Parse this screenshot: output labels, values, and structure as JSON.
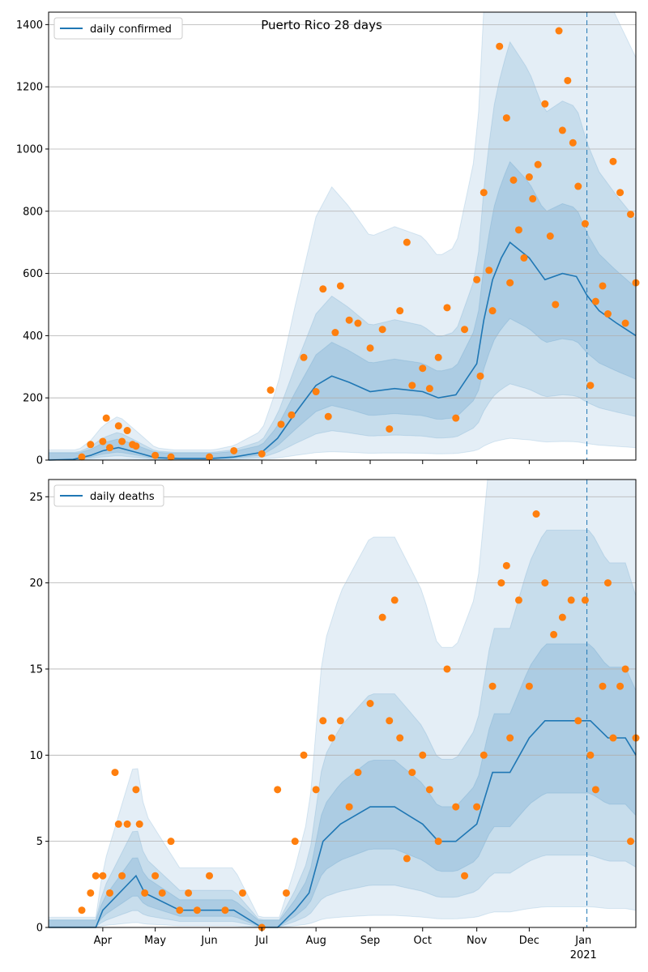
{
  "title": "Puerto Rico 28 days",
  "colors": {
    "line": "#1f77b4",
    "points": "#ff7f0e",
    "band": "#1f77b4",
    "grid": "#b0b0b0",
    "vline": "#1f77b4"
  },
  "x_axis": {
    "start_date": "2020-03-01",
    "end_date": "2021-01-31",
    "ticks": [
      {
        "date": "2020-04-01",
        "label": "Apr"
      },
      {
        "date": "2020-05-01",
        "label": "May"
      },
      {
        "date": "2020-06-01",
        "label": "Jun"
      },
      {
        "date": "2020-07-01",
        "label": "Jul"
      },
      {
        "date": "2020-08-01",
        "label": "Aug"
      },
      {
        "date": "2020-09-01",
        "label": "Sep"
      },
      {
        "date": "2020-10-01",
        "label": "Oct"
      },
      {
        "date": "2020-11-01",
        "label": "Nov"
      },
      {
        "date": "2020-12-01",
        "label": "Dec"
      },
      {
        "date": "2021-01-01",
        "label": "Jan"
      }
    ],
    "year_label": "2021",
    "forecast_start": "2021-01-03"
  },
  "chart_data": [
    {
      "type": "line",
      "series": [
        {
          "name": "daily confirmed",
          "x": [
            "2020-03-01",
            "2020-03-15",
            "2020-03-25",
            "2020-04-01",
            "2020-04-10",
            "2020-04-20",
            "2020-05-01",
            "2020-05-15",
            "2020-06-01",
            "2020-06-15",
            "2020-07-01",
            "2020-07-10",
            "2020-07-20",
            "2020-08-01",
            "2020-08-10",
            "2020-08-20",
            "2020-09-01",
            "2020-09-15",
            "2020-10-01",
            "2020-10-10",
            "2020-10-20",
            "2020-11-01",
            "2020-11-05",
            "2020-11-10",
            "2020-11-15",
            "2020-11-20",
            "2020-12-01",
            "2020-12-10",
            "2020-12-20",
            "2020-12-28",
            "2021-01-03",
            "2021-01-10",
            "2021-01-20",
            "2021-01-31"
          ],
          "y": [
            0,
            2,
            15,
            30,
            40,
            25,
            8,
            5,
            5,
            10,
            25,
            70,
            150,
            240,
            270,
            250,
            220,
            230,
            220,
            200,
            210,
            310,
            450,
            580,
            650,
            700,
            650,
            580,
            600,
            590,
            530,
            480,
            440,
            400
          ]
        },
        {
          "name": "daily confirmed observed",
          "x": [
            "2020-03-20",
            "2020-03-25",
            "2020-04-01",
            "2020-04-03",
            "2020-04-05",
            "2020-04-10",
            "2020-04-12",
            "2020-04-15",
            "2020-04-18",
            "2020-04-20",
            "2020-05-01",
            "2020-05-10",
            "2020-06-01",
            "2020-06-15",
            "2020-07-01",
            "2020-07-06",
            "2020-07-12",
            "2020-07-18",
            "2020-07-25",
            "2020-08-01",
            "2020-08-05",
            "2020-08-08",
            "2020-08-12",
            "2020-08-15",
            "2020-08-20",
            "2020-08-25",
            "2020-09-01",
            "2020-09-08",
            "2020-09-12",
            "2020-09-18",
            "2020-09-22",
            "2020-09-25",
            "2020-10-01",
            "2020-10-05",
            "2020-10-10",
            "2020-10-15",
            "2020-10-20",
            "2020-10-25",
            "2020-11-01",
            "2020-11-03",
            "2020-11-05",
            "2020-11-08",
            "2020-11-10",
            "2020-11-14",
            "2020-11-18",
            "2020-11-20",
            "2020-11-22",
            "2020-11-25",
            "2020-11-28",
            "2020-12-01",
            "2020-12-03",
            "2020-12-06",
            "2020-12-10",
            "2020-12-13",
            "2020-12-16",
            "2020-12-18",
            "2020-12-20",
            "2020-12-23",
            "2020-12-26",
            "2020-12-29",
            "2021-01-02",
            "2021-01-05",
            "2021-01-08",
            "2021-01-12",
            "2021-01-15",
            "2021-01-18",
            "2021-01-22",
            "2021-01-25",
            "2021-01-28",
            "2021-01-31"
          ],
          "y": [
            10,
            50,
            60,
            135,
            40,
            110,
            60,
            95,
            50,
            45,
            15,
            10,
            10,
            30,
            20,
            225,
            115,
            145,
            330,
            220,
            550,
            140,
            410,
            560,
            450,
            440,
            360,
            420,
            100,
            480,
            700,
            240,
            295,
            230,
            330,
            490,
            135,
            420,
            580,
            270,
            860,
            610,
            480,
            1330,
            1100,
            570,
            900,
            740,
            650,
            910,
            840,
            950,
            1145,
            720,
            500,
            1380,
            1060,
            1220,
            1020,
            880,
            760,
            240,
            510,
            560,
            470,
            960,
            860,
            440,
            790,
            570
          ]
        }
      ],
      "ylim": [
        0,
        1440
      ],
      "yticks": [
        0,
        200,
        400,
        600,
        800,
        1000,
        1200,
        1400
      ]
    },
    {
      "type": "line",
      "series": [
        {
          "name": "daily deaths",
          "x": [
            "2020-03-01",
            "2020-03-28",
            "2020-04-01",
            "2020-04-20",
            "2020-04-25",
            "2020-05-15",
            "2020-06-01",
            "2020-06-15",
            "2020-07-01",
            "2020-07-10",
            "2020-07-20",
            "2020-07-28",
            "2020-08-05",
            "2020-08-15",
            "2020-09-01",
            "2020-09-15",
            "2020-10-01",
            "2020-10-10",
            "2020-10-20",
            "2020-11-01",
            "2020-11-10",
            "2020-11-20",
            "2020-12-01",
            "2020-12-10",
            "2020-12-20",
            "2020-12-28",
            "2021-01-05",
            "2021-01-15",
            "2021-01-25",
            "2021-01-31"
          ],
          "y": [
            0,
            0,
            1,
            3,
            2,
            1,
            1,
            1,
            0,
            0,
            1,
            2,
            5,
            6,
            7,
            7,
            6,
            5,
            5,
            6,
            9,
            9,
            11,
            12,
            12,
            12,
            12,
            11,
            11,
            10
          ]
        },
        {
          "name": "daily deaths observed",
          "x": [
            "2020-03-20",
            "2020-03-25",
            "2020-03-28",
            "2020-04-01",
            "2020-04-05",
            "2020-04-08",
            "2020-04-10",
            "2020-04-12",
            "2020-04-15",
            "2020-04-20",
            "2020-04-22",
            "2020-04-25",
            "2020-05-01",
            "2020-05-05",
            "2020-05-10",
            "2020-05-15",
            "2020-05-20",
            "2020-05-25",
            "2020-06-01",
            "2020-06-10",
            "2020-06-20",
            "2020-07-01",
            "2020-07-10",
            "2020-07-15",
            "2020-07-20",
            "2020-07-25",
            "2020-08-01",
            "2020-08-05",
            "2020-08-10",
            "2020-08-15",
            "2020-08-20",
            "2020-08-25",
            "2020-09-01",
            "2020-09-08",
            "2020-09-12",
            "2020-09-15",
            "2020-09-18",
            "2020-09-22",
            "2020-09-25",
            "2020-10-01",
            "2020-10-05",
            "2020-10-10",
            "2020-10-15",
            "2020-10-20",
            "2020-10-25",
            "2020-11-01",
            "2020-11-05",
            "2020-11-10",
            "2020-11-15",
            "2020-11-18",
            "2020-11-20",
            "2020-11-25",
            "2020-12-01",
            "2020-12-05",
            "2020-12-10",
            "2020-12-15",
            "2020-12-20",
            "2020-12-25",
            "2020-12-29",
            "2021-01-02",
            "2021-01-05",
            "2021-01-08",
            "2021-01-12",
            "2021-01-15",
            "2021-01-18",
            "2021-01-22",
            "2021-01-25",
            "2021-01-28",
            "2021-01-31"
          ],
          "y": [
            1,
            2,
            3,
            3,
            2,
            9,
            6,
            3,
            6,
            8,
            6,
            2,
            3,
            2,
            5,
            1,
            2,
            1,
            3,
            1,
            2,
            0,
            8,
            2,
            5,
            10,
            8,
            12,
            11,
            12,
            7,
            9,
            13,
            18,
            12,
            19,
            11,
            4,
            9,
            10,
            8,
            5,
            15,
            7,
            3,
            7,
            10,
            14,
            20,
            21,
            11,
            19,
            14,
            24,
            20,
            17,
            18,
            19,
            12,
            19,
            10,
            8,
            14,
            20,
            11,
            14,
            15,
            5,
            11
          ]
        }
      ],
      "ylim": [
        0,
        26
      ],
      "yticks": [
        0,
        5,
        10,
        15,
        20,
        25
      ]
    }
  ]
}
